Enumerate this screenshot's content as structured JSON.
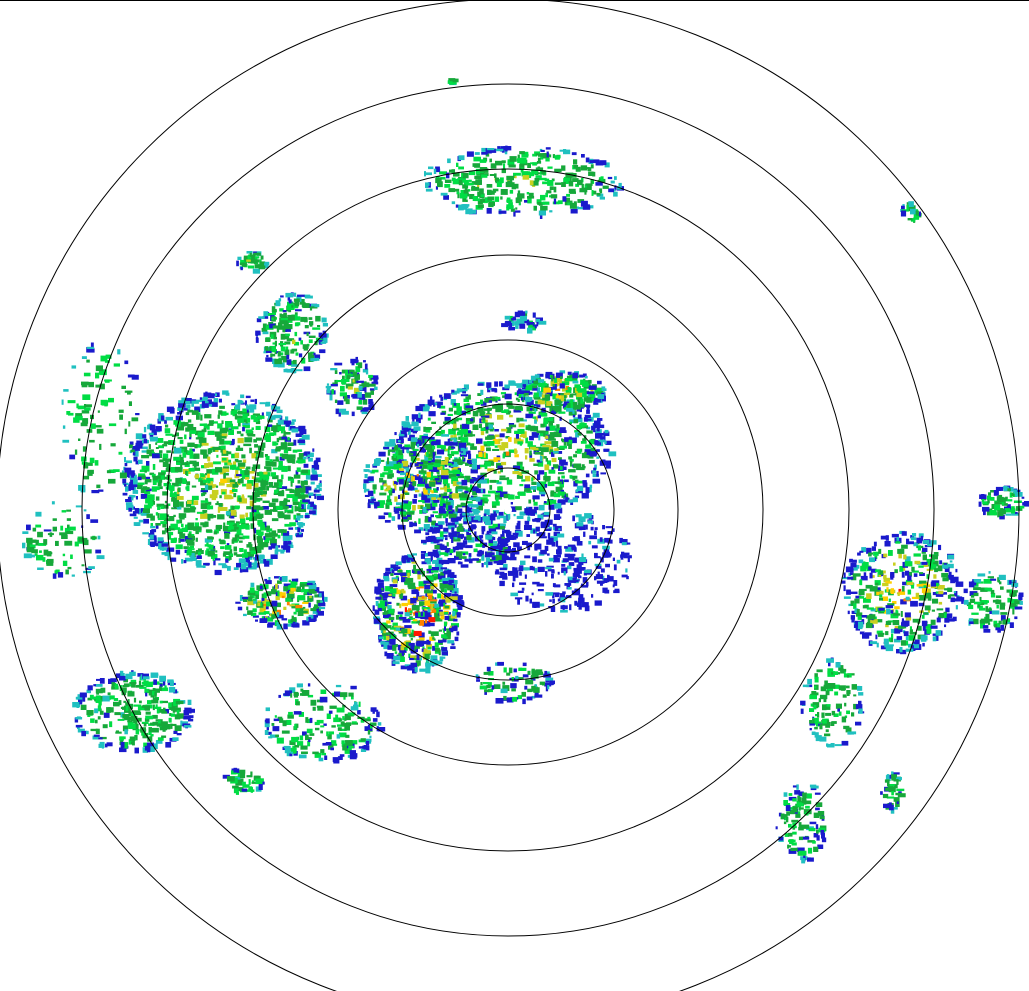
{
  "radar": {
    "range_ring_count": 7,
    "reflectivity_colors": {
      "light": "#1a1acc",
      "light_cyan": "#20c0c0",
      "moderate_light": "#00dd44",
      "moderate": "#16a83a",
      "moderate_heavy": "#c8d020",
      "heavy": "#ffd000",
      "very_heavy": "#ff8000",
      "intense": "#ff1a00"
    },
    "ring_color": "#000000",
    "background": "#ffffff",
    "center_marker_color": "#ffffff"
  }
}
